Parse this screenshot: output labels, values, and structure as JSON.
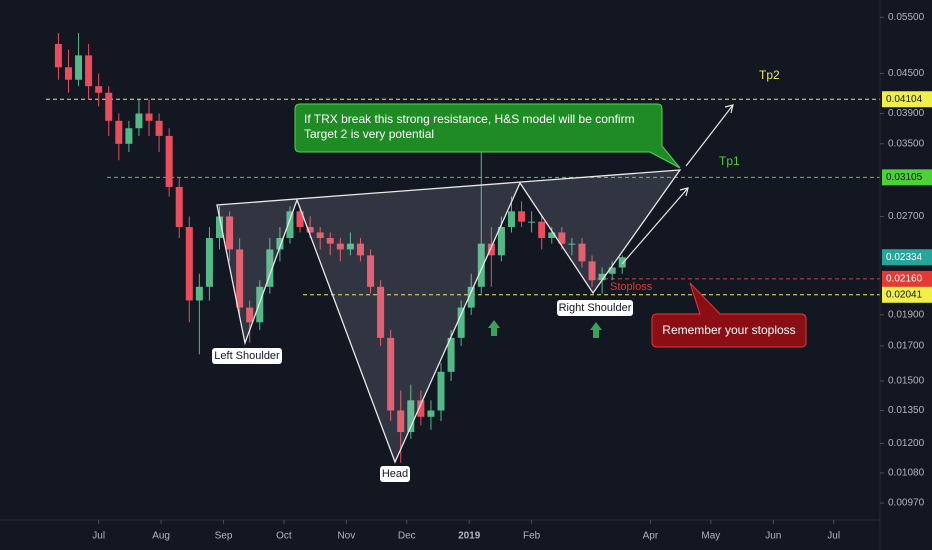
{
  "chart_data": {
    "type": "candlestick",
    "log_scale": true,
    "up_color": "#53b987",
    "down_color": "#eb4d5c",
    "xlim": [
      -49,
      388
    ],
    "ylim": [
      0.00913,
      0.0585
    ],
    "xticks": [
      {
        "value": 0,
        "label": "Jul"
      },
      {
        "value": 31,
        "label": "Aug"
      },
      {
        "value": 62,
        "label": "Sep"
      },
      {
        "value": 92,
        "label": "Oct"
      },
      {
        "value": 123,
        "label": "Nov"
      },
      {
        "value": 153,
        "label": "Dec"
      },
      {
        "value": 184,
        "label": "2019"
      },
      {
        "value": 215,
        "label": "Feb"
      },
      {
        "value": 274,
        "label": "Apr"
      },
      {
        "value": 304,
        "label": "May"
      },
      {
        "value": 335,
        "label": "Jun"
      },
      {
        "value": 365,
        "label": "Jul"
      }
    ],
    "yticks": [
      {
        "value": 0.055,
        "label": "0.05500"
      },
      {
        "value": 0.045,
        "label": "0.04500"
      },
      {
        "value": 0.039,
        "label": "0.03900"
      },
      {
        "value": 0.035,
        "label": "0.03500"
      },
      {
        "value": 0.027,
        "label": "0.02700"
      },
      {
        "value": 0.019,
        "label": "0.01900"
      },
      {
        "value": 0.017,
        "label": "0.01700"
      },
      {
        "value": 0.015,
        "label": "0.01500"
      },
      {
        "value": 0.0135,
        "label": "0.01350"
      },
      {
        "value": 0.012,
        "label": "0.01200"
      },
      {
        "value": 0.0108,
        "label": "0.01080"
      },
      {
        "value": 0.0097,
        "label": "0.00970"
      }
    ],
    "x": [
      -20,
      -15,
      -10,
      -5,
      0,
      5,
      10,
      15,
      20,
      25,
      30,
      35,
      40,
      45,
      50,
      55,
      60,
      65,
      70,
      75,
      80,
      85,
      90,
      95,
      100,
      105,
      110,
      115,
      120,
      125,
      130,
      135,
      140,
      145,
      150,
      155,
      160,
      165,
      170,
      175,
      180,
      185,
      190,
      195,
      200,
      205,
      210,
      215,
      220,
      225,
      230,
      235,
      240,
      245,
      250,
      255,
      260
    ],
    "open": [
      0.05,
      0.046,
      0.044,
      0.048,
      0.043,
      0.042,
      0.038,
      0.035,
      0.037,
      0.039,
      0.038,
      0.036,
      0.03,
      0.026,
      0.02,
      0.021,
      0.025,
      0.027,
      0.024,
      0.0195,
      0.0185,
      0.021,
      0.024,
      0.025,
      0.0275,
      0.026,
      0.0255,
      0.025,
      0.0245,
      0.024,
      0.0245,
      0.0235,
      0.021,
      0.0175,
      0.0135,
      0.0125,
      0.014,
      0.0132,
      0.0135,
      0.0155,
      0.0175,
      0.0195,
      0.021,
      0.0245,
      0.0235,
      0.026,
      0.0275,
      0.0265,
      0.0265,
      0.025,
      0.0255,
      0.0245,
      0.0245,
      0.023,
      0.0215,
      0.022,
      0.0225
    ],
    "high": [
      0.052,
      0.049,
      0.052,
      0.05,
      0.045,
      0.043,
      0.039,
      0.038,
      0.041,
      0.041,
      0.039,
      0.037,
      0.031,
      0.027,
      0.022,
      0.026,
      0.028,
      0.0275,
      0.025,
      0.02,
      0.0215,
      0.025,
      0.026,
      0.028,
      0.028,
      0.027,
      0.026,
      0.0255,
      0.025,
      0.0255,
      0.025,
      0.024,
      0.0215,
      0.018,
      0.0145,
      0.0148,
      0.0145,
      0.014,
      0.016,
      0.018,
      0.02,
      0.022,
      0.034,
      0.026,
      0.027,
      0.029,
      0.0285,
      0.0275,
      0.027,
      0.026,
      0.026,
      0.025,
      0.025,
      0.0235,
      0.0225,
      0.023,
      0.0235
    ],
    "low": [
      0.044,
      0.042,
      0.043,
      0.041,
      0.04,
      0.036,
      0.033,
      0.034,
      0.036,
      0.036,
      0.034,
      0.029,
      0.025,
      0.0185,
      0.0165,
      0.02,
      0.024,
      0.023,
      0.019,
      0.0172,
      0.018,
      0.0205,
      0.023,
      0.0245,
      0.0255,
      0.025,
      0.024,
      0.0235,
      0.023,
      0.0235,
      0.023,
      0.0205,
      0.017,
      0.013,
      0.0112,
      0.0122,
      0.0128,
      0.0126,
      0.013,
      0.015,
      0.017,
      0.019,
      0.0205,
      0.021,
      0.023,
      0.0255,
      0.026,
      0.0255,
      0.024,
      0.0245,
      0.024,
      0.0235,
      0.0225,
      0.021,
      0.0205,
      0.0215,
      0.022
    ],
    "close": [
      0.046,
      0.044,
      0.048,
      0.043,
      0.042,
      0.038,
      0.035,
      0.037,
      0.039,
      0.038,
      0.036,
      0.03,
      0.026,
      0.02,
      0.021,
      0.025,
      0.027,
      0.024,
      0.0195,
      0.0185,
      0.021,
      0.024,
      0.025,
      0.0275,
      0.026,
      0.0255,
      0.025,
      0.0245,
      0.024,
      0.0245,
      0.0235,
      0.021,
      0.0175,
      0.0135,
      0.0125,
      0.014,
      0.0132,
      0.0135,
      0.0155,
      0.0175,
      0.0195,
      0.021,
      0.0245,
      0.0235,
      0.026,
      0.0275,
      0.0265,
      0.0265,
      0.025,
      0.0255,
      0.0245,
      0.0245,
      0.023,
      0.0215,
      0.022,
      0.0225,
      0.02334
    ],
    "price_lines": [
      {
        "value": 0.04104,
        "color": "#f0f048",
        "dashed": true
      },
      {
        "value": 0.03105,
        "color": "#4cd137",
        "dashed": true
      },
      {
        "value": 0.02334,
        "color": "#26a69a",
        "dashed": false
      },
      {
        "value": 0.0216,
        "label": "0.02160",
        "color": "#e53935",
        "dashed": true
      },
      {
        "value": 0.02041,
        "color": "#f0f048",
        "dashed": true
      }
    ],
    "annotations": {
      "callout": [
        "If TRX break this strong resistance, H&S model will be confirm",
        "Target 2 is very potential"
      ],
      "reminder": "Remember your stoploss",
      "left_shoulder": "Left Shoulder",
      "head": "Head",
      "right_shoulder": "Right Shoulder",
      "stoploss": "Stoploss",
      "tp1": "Tp1",
      "tp2": "Tp2"
    }
  }
}
